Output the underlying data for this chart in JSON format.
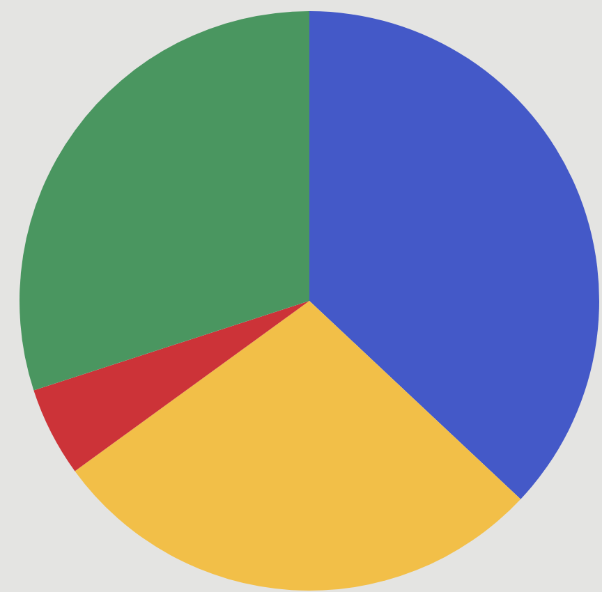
{
  "chart_data": {
    "type": "pie",
    "categories": [
      null,
      null,
      null,
      null
    ],
    "values": [
      37,
      28,
      5,
      30
    ],
    "colors": [
      "#4459c8",
      "#f2bf48",
      "#cc3338",
      "#4a9660"
    ]
  }
}
